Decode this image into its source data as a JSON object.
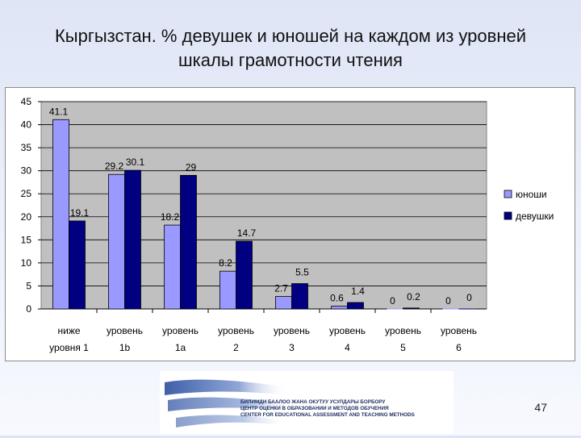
{
  "slide": {
    "title_line1": "Кыргызстан. % девушек и юношей на каждом из уровней",
    "title_line2": "шкалы грамотности чтения",
    "page_number": "47"
  },
  "footer": {
    "org_line1": "БИЛИМДИ БААЛОО ЖАНА ОКУТУУ УСУЛДАРЫ БОРБОРУ",
    "org_line2": "ЦЕНТР ОЦЕНКИ В ОБРАЗОВАНИИ И МЕТОДОВ ОБУЧЕНИЯ",
    "org_line3": "CENTER FOR EDUCATIONAL ASSESSMENT AND TEACHING METHODS"
  },
  "chart_data": {
    "type": "bar",
    "categories": [
      [
        "ниже",
        "уровня 1"
      ],
      [
        "уровень",
        "1b"
      ],
      [
        "уровень",
        "1a"
      ],
      [
        "уровень",
        "2"
      ],
      [
        "уровень",
        "3"
      ],
      [
        "уровень",
        "4"
      ],
      [
        "уровень",
        "5"
      ],
      [
        "уровень",
        "6"
      ]
    ],
    "series": [
      {
        "name": "юноши",
        "values": [
          41.1,
          29.2,
          18.2,
          8.2,
          2.7,
          0.6,
          0,
          0
        ],
        "labels": [
          "41.1",
          "29.2",
          "18.2",
          "8.2",
          "2.7",
          "0.6",
          "0",
          "0"
        ],
        "color": "#9999ff"
      },
      {
        "name": "девушки",
        "values": [
          19.1,
          30.1,
          29,
          14.7,
          5.5,
          1.4,
          0.2,
          0
        ],
        "labels": [
          "19.1",
          "30.1",
          "29",
          "14.7",
          "5.5",
          "1.4",
          "0.2",
          "0"
        ],
        "color": "#000080"
      }
    ],
    "ylim": [
      0,
      45
    ],
    "yticks": [
      "0",
      "5",
      "10",
      "15",
      "20",
      "25",
      "30",
      "35",
      "40",
      "45"
    ],
    "plot_background": "#c0c0c0",
    "grid": true,
    "legend_position": "right"
  }
}
